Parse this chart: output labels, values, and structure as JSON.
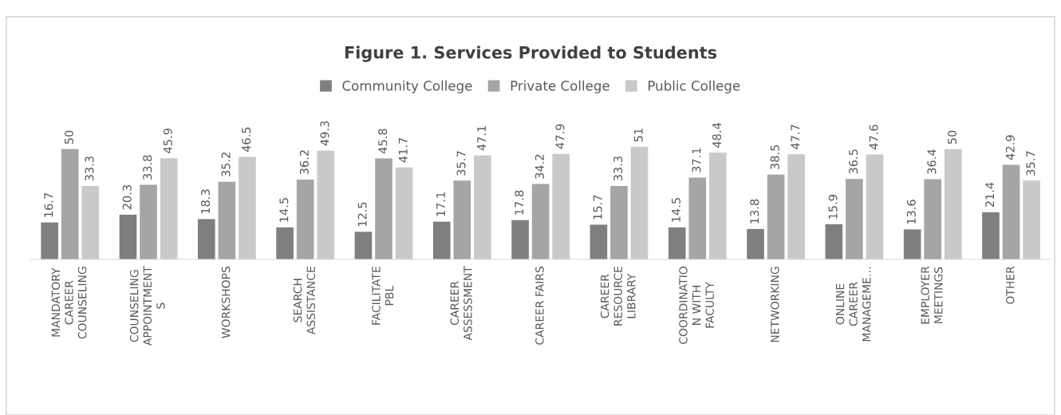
{
  "chart_data": {
    "type": "bar",
    "title": "Figure 1. Services Provided to Students",
    "data_labels": true,
    "legend": "top",
    "grid": false,
    "categories": [
      "MANDATORY\nCAREER\nCOUNSELING",
      "COUNSELING\nAPPOINTMENT\nS",
      "WORKSHOPS",
      "SEARCH\nASSISTANCE",
      "FACILITATE\nPBL",
      "CAREER\nASSESSMENT",
      "CAREER FAIRS",
      "CAREER\nRESOURCE\nLIBRARY",
      "COORDINATIO\nN WITH\nFACULTY",
      "NETWORKING",
      "ONLINE\nCAREER\nMANAGEME…",
      "EMPLOYER\nMEETINGS",
      "OTHER"
    ],
    "series": [
      {
        "name": "Community College",
        "color": "#7f7f7f",
        "values": [
          16.7,
          20.3,
          18.3,
          14.5,
          12.5,
          17.1,
          17.8,
          15.7,
          14.5,
          13.8,
          15.9,
          13.6,
          21.4
        ]
      },
      {
        "name": "Private College",
        "color": "#a5a5a5",
        "values": [
          50,
          33.8,
          35.2,
          36.2,
          45.8,
          35.7,
          34.2,
          33.3,
          37.1,
          38.5,
          36.5,
          36.4,
          42.9
        ]
      },
      {
        "name": "Public College",
        "color": "#c9c9c9",
        "values": [
          33.3,
          45.9,
          46.5,
          49.3,
          41.7,
          47.1,
          47.9,
          51,
          48.4,
          47.7,
          47.6,
          50,
          35.7
        ]
      }
    ]
  }
}
